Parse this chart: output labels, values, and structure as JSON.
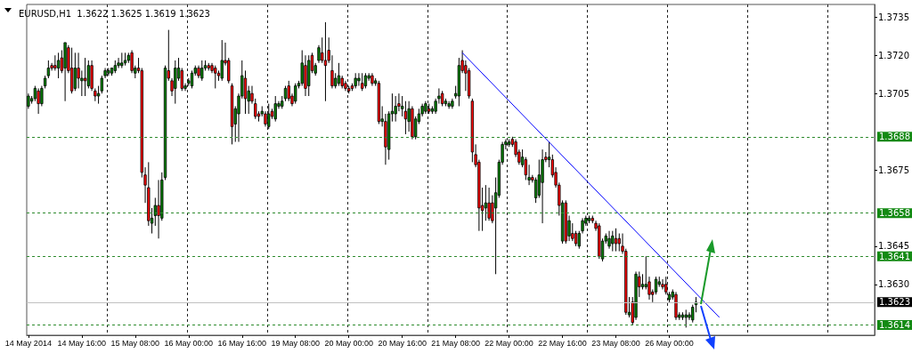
{
  "chart_data": {
    "type": "candlestick",
    "title": "EURUSD,H1  1.3622 1.3625 1.3619 1.3623",
    "categories": [
      "14 May 2014",
      null,
      null,
      null,
      null,
      null,
      null,
      null,
      null,
      null,
      null,
      null,
      null,
      null,
      null,
      null,
      "14 May 16:00",
      null,
      null,
      null,
      null,
      null,
      null,
      null,
      null,
      null,
      null,
      null,
      null,
      null,
      null,
      null,
      "15 May 08:00",
      null,
      null,
      null,
      null,
      null,
      null,
      null,
      null,
      null,
      null,
      null,
      null,
      null,
      null,
      null,
      "16 May 00:00",
      null,
      null,
      null,
      null,
      null,
      null,
      null,
      null,
      null,
      null,
      null,
      null,
      null,
      null,
      null,
      "16 May 16:00",
      null,
      null,
      null,
      null,
      null,
      null,
      null,
      null,
      null,
      null,
      null,
      null,
      null,
      null,
      null,
      "19 May 08:00",
      null,
      null,
      null,
      null,
      null,
      null,
      null,
      null,
      null,
      null,
      null,
      null,
      null,
      null,
      null,
      "20 May 00:00",
      null,
      null,
      null,
      null,
      null,
      null,
      null,
      null,
      null,
      null,
      null,
      null,
      null,
      null,
      null,
      "20 May 16:00",
      null,
      null,
      null,
      null,
      null,
      null,
      null,
      null,
      null,
      null,
      null,
      null,
      null,
      null,
      null,
      "21 May 08:00",
      null,
      null,
      null,
      null,
      null,
      null,
      null,
      null,
      null,
      null,
      null,
      null,
      null,
      null,
      null,
      "22 May 00:00",
      null,
      null,
      null,
      null,
      null,
      null,
      null,
      null,
      null,
      null,
      null,
      null,
      null,
      null,
      null,
      "22 May 16:00",
      null,
      null,
      null,
      null,
      null,
      null,
      null,
      null,
      null,
      null,
      null,
      null,
      null,
      null,
      null,
      "23 May 08:00",
      null,
      null,
      null,
      null,
      null,
      null,
      null,
      null,
      null,
      null,
      null,
      null,
      null,
      null,
      null,
      "26 May 00:00",
      null,
      null,
      null,
      null,
      null,
      null,
      null,
      null,
      null,
      null,
      null,
      null,
      null,
      null,
      null,
      null,
      null,
      null,
      null,
      null,
      null,
      null,
      null,
      null,
      null,
      null,
      null,
      null,
      null,
      null,
      null,
      null,
      null,
      null,
      null,
      null,
      null,
      null,
      null,
      null,
      null,
      null,
      null,
      null,
      null,
      null,
      null,
      null,
      null,
      null,
      null,
      null,
      null,
      null,
      null,
      null,
      null,
      null,
      null,
      null,
      null
    ],
    "ohlc": [
      [
        1.37,
        1.3705,
        1.3699,
        1.3704
      ],
      [
        1.3702,
        1.3704,
        1.3701,
        1.3703
      ],
      [
        1.3703,
        1.3708,
        1.3702,
        1.3707
      ],
      [
        1.3706,
        1.3707,
        1.3697,
        1.3701
      ],
      [
        1.3701,
        1.3708,
        1.37,
        1.3707
      ],
      [
        1.3708,
        1.3712,
        1.3707,
        1.3711
      ],
      [
        1.3712,
        1.3718,
        1.3711,
        1.3715
      ],
      [
        1.3716,
        1.3717,
        1.3714,
        1.3715
      ],
      [
        1.3716,
        1.372,
        1.3714,
        1.3715
      ],
      [
        1.3715,
        1.3721,
        1.3711,
        1.3718
      ],
      [
        1.3719,
        1.3722,
        1.3713,
        1.3714
      ],
      [
        1.3715,
        1.3725,
        1.3702,
        1.3725
      ],
      [
        1.3723,
        1.3724,
        1.3713,
        1.3714
      ],
      [
        1.3715,
        1.3723,
        1.3705,
        1.3706
      ],
      [
        1.3707,
        1.3721,
        1.3706,
        1.3715
      ],
      [
        1.3715,
        1.3721,
        1.3707,
        1.3711
      ],
      [
        1.371,
        1.3714,
        1.3704,
        1.3711
      ],
      [
        1.3711,
        1.3719,
        1.3704,
        1.371
      ],
      [
        1.3708,
        1.3718,
        1.3707,
        1.3716
      ],
      [
        1.3716,
        1.3718,
        1.3706,
        1.3707
      ],
      [
        1.3706,
        1.3707,
        1.3702,
        1.3704
      ],
      [
        1.3704,
        1.3708,
        1.3701,
        1.3705
      ],
      [
        1.3706,
        1.3712,
        1.3705,
        1.3711
      ],
      [
        1.3712,
        1.3715,
        1.3711,
        1.3714
      ],
      [
        1.3713,
        1.3715,
        1.3712,
        1.3714
      ],
      [
        1.3713,
        1.3715,
        1.3712,
        1.3715
      ],
      [
        1.3714,
        1.3718,
        1.3713,
        1.3716
      ],
      [
        1.3716,
        1.3719,
        1.3715,
        1.3717
      ],
      [
        1.3716,
        1.3721,
        1.3715,
        1.3717
      ],
      [
        1.3717,
        1.3721,
        1.3716,
        1.3718
      ],
      [
        1.3718,
        1.3721,
        1.3717,
        1.372
      ],
      [
        1.3721,
        1.3722,
        1.3713,
        1.3714
      ],
      [
        1.3713,
        1.3716,
        1.3711,
        1.3715
      ],
      [
        1.3715,
        1.3719,
        1.3713,
        1.3714
      ],
      [
        1.3714,
        1.3715,
        1.3672,
        1.3674
      ],
      [
        1.3673,
        1.3676,
        1.3662,
        1.3669
      ],
      [
        1.3668,
        1.3678,
        1.3653,
        1.3655
      ],
      [
        1.3654,
        1.366,
        1.365,
        1.3656
      ],
      [
        1.3657,
        1.3664,
        1.3653,
        1.3661
      ],
      [
        1.3661,
        1.3671,
        1.3648,
        1.3657
      ],
      [
        1.3656,
        1.3674,
        1.3655,
        1.3671
      ],
      [
        1.3672,
        1.3716,
        1.3671,
        1.3715
      ],
      [
        1.3714,
        1.373,
        1.371,
        1.3711
      ],
      [
        1.371,
        1.3711,
        1.3704,
        1.3706
      ],
      [
        1.3707,
        1.3718,
        1.3701,
        1.3715
      ],
      [
        1.3711,
        1.3719,
        1.371,
        1.3715
      ],
      [
        1.3714,
        1.3715,
        1.3706,
        1.3707
      ],
      [
        1.3707,
        1.3709,
        1.3706,
        1.3708
      ],
      [
        1.3709,
        1.3711,
        1.3708,
        1.371
      ],
      [
        1.3708,
        1.3714,
        1.3707,
        1.3713
      ],
      [
        1.3713,
        1.3716,
        1.3712,
        1.3715
      ],
      [
        1.3715,
        1.3716,
        1.3711,
        1.3712
      ],
      [
        1.3711,
        1.3718,
        1.371,
        1.3715
      ],
      [
        1.3715,
        1.3718,
        1.3714,
        1.3716
      ],
      [
        1.3716,
        1.3717,
        1.3714,
        1.3715
      ],
      [
        1.3716,
        1.3717,
        1.3713,
        1.3714
      ],
      [
        1.3715,
        1.3716,
        1.3707,
        1.3713
      ],
      [
        1.3713,
        1.3714,
        1.371,
        1.3712
      ],
      [
        1.3711,
        1.3726,
        1.371,
        1.3718
      ],
      [
        1.3718,
        1.3725,
        1.3716,
        1.3717
      ],
      [
        1.3718,
        1.3719,
        1.3709,
        1.371
      ],
      [
        1.3708,
        1.3709,
        1.3685,
        1.3692
      ],
      [
        1.3693,
        1.37,
        1.3686,
        1.3699
      ],
      [
        1.3697,
        1.3705,
        1.3686,
        1.3704
      ],
      [
        1.3704,
        1.3718,
        1.3703,
        1.3712
      ],
      [
        1.3711,
        1.3714,
        1.3697,
        1.3703
      ],
      [
        1.3702,
        1.3708,
        1.3697,
        1.3706
      ],
      [
        1.3705,
        1.3708,
        1.3701,
        1.3702
      ],
      [
        1.3701,
        1.3703,
        1.3695,
        1.3696
      ],
      [
        1.3697,
        1.3698,
        1.3694,
        1.3696
      ],
      [
        1.3697,
        1.37,
        1.3696,
        1.3698
      ],
      [
        1.3697,
        1.3698,
        1.3692,
        1.3693
      ],
      [
        1.3692,
        1.3701,
        1.3691,
        1.3697
      ],
      [
        1.3698,
        1.3699,
        1.3695,
        1.3696
      ],
      [
        1.3695,
        1.3704,
        1.3694,
        1.3701
      ],
      [
        1.37,
        1.3702,
        1.3699,
        1.3701
      ],
      [
        1.37,
        1.3704,
        1.3699,
        1.3702
      ],
      [
        1.3703,
        1.3708,
        1.3702,
        1.3707
      ],
      [
        1.3708,
        1.371,
        1.3702,
        1.3703
      ],
      [
        1.3704,
        1.3705,
        1.37,
        1.3701
      ],
      [
        1.3702,
        1.3709,
        1.3701,
        1.3708
      ],
      [
        1.3708,
        1.371,
        1.3707,
        1.3709
      ],
      [
        1.3709,
        1.3722,
        1.3708,
        1.3717
      ],
      [
        1.3716,
        1.372,
        1.3704,
        1.3707
      ],
      [
        1.3708,
        1.372,
        1.3704,
        1.3718
      ],
      [
        1.372,
        1.3721,
        1.3713,
        1.3714
      ],
      [
        1.3713,
        1.3717,
        1.3712,
        1.3716
      ],
      [
        1.3718,
        1.3724,
        1.3717,
        1.3723
      ],
      [
        1.3721,
        1.3727,
        1.3717,
        1.3718
      ],
      [
        1.3718,
        1.3733,
        1.3702,
        1.3716
      ],
      [
        1.3722,
        1.3727,
        1.3717,
        1.3718
      ],
      [
        1.3714,
        1.372,
        1.3707,
        1.3708
      ],
      [
        1.3708,
        1.3713,
        1.3707,
        1.3711
      ],
      [
        1.3709,
        1.3717,
        1.3708,
        1.3712
      ],
      [
        1.3711,
        1.3712,
        1.3707,
        1.3708
      ],
      [
        1.3709,
        1.371,
        1.3706,
        1.3707
      ],
      [
        1.3707,
        1.3708,
        1.3705,
        1.3706
      ],
      [
        1.3708,
        1.3709,
        1.3706,
        1.3707
      ],
      [
        1.3708,
        1.3713,
        1.3707,
        1.3711
      ],
      [
        1.371,
        1.3713,
        1.3708,
        1.3711
      ],
      [
        1.3709,
        1.3713,
        1.3706,
        1.3707
      ],
      [
        1.3708,
        1.3713,
        1.3707,
        1.3712
      ],
      [
        1.3711,
        1.3713,
        1.371,
        1.3712
      ],
      [
        1.3712,
        1.3713,
        1.3708,
        1.3709
      ],
      [
        1.3709,
        1.3711,
        1.3708,
        1.371
      ],
      [
        1.3709,
        1.371,
        1.3693,
        1.3694
      ],
      [
        1.3694,
        1.37,
        1.3692,
        1.3695
      ],
      [
        1.3694,
        1.3697,
        1.3677,
        1.3684
      ],
      [
        1.3683,
        1.3698,
        1.3679,
        1.3697
      ],
      [
        1.3697,
        1.3705,
        1.3694,
        1.3698
      ],
      [
        1.3697,
        1.3704,
        1.3694,
        1.37
      ],
      [
        1.3701,
        1.3705,
        1.3698,
        1.37
      ],
      [
        1.3699,
        1.3704,
        1.3696,
        1.37
      ],
      [
        1.3698,
        1.3702,
        1.3689,
        1.3695
      ],
      [
        1.3694,
        1.3702,
        1.369,
        1.3699
      ],
      [
        1.3699,
        1.37,
        1.3687,
        1.3688
      ],
      [
        1.3688,
        1.3696,
        1.3687,
        1.3695
      ],
      [
        1.3694,
        1.3699,
        1.3693,
        1.3697
      ],
      [
        1.3697,
        1.3701,
        1.3696,
        1.37
      ],
      [
        1.3698,
        1.3702,
        1.3697,
        1.3701
      ],
      [
        1.3699,
        1.3701,
        1.3697,
        1.3698
      ],
      [
        1.3698,
        1.37,
        1.3697,
        1.3699
      ],
      [
        1.3698,
        1.3703,
        1.3697,
        1.3702
      ],
      [
        1.3703,
        1.3707,
        1.3701,
        1.3704
      ],
      [
        1.3705,
        1.3706,
        1.37,
        1.3701
      ],
      [
        1.3701,
        1.3703,
        1.37,
        1.3702
      ],
      [
        1.37,
        1.3702,
        1.3699,
        1.3701
      ],
      [
        1.37,
        1.3703,
        1.3699,
        1.3702
      ],
      [
        1.3704,
        1.3708,
        1.3703,
        1.3705
      ],
      [
        1.3704,
        1.3719,
        1.37,
        1.3716
      ],
      [
        1.3718,
        1.3722,
        1.3713,
        1.3714
      ],
      [
        1.3716,
        1.3718,
        1.3706,
        1.3713
      ],
      [
        1.3714,
        1.3715,
        1.3703,
        1.3704
      ],
      [
        1.3702,
        1.3703,
        1.3678,
        1.3682
      ],
      [
        1.3681,
        1.3685,
        1.3676,
        1.3677
      ],
      [
        1.3678,
        1.3679,
        1.3651,
        1.366
      ],
      [
        1.3661,
        1.3668,
        1.3651,
        1.3659
      ],
      [
        1.366,
        1.3669,
        1.3655,
        1.3662
      ],
      [
        1.3662,
        1.3668,
        1.3655,
        1.3656
      ],
      [
        1.3662,
        1.3665,
        1.3654,
        1.3655
      ],
      [
        1.366,
        1.3672,
        1.3634,
        1.3666
      ],
      [
        1.3665,
        1.3679,
        1.3664,
        1.3678
      ],
      [
        1.3678,
        1.3686,
        1.3677,
        1.3685
      ],
      [
        1.3685,
        1.3687,
        1.3683,
        1.3686
      ],
      [
        1.3685,
        1.3687,
        1.3684,
        1.3686
      ],
      [
        1.3687,
        1.3688,
        1.3684,
        1.3685
      ],
      [
        1.3686,
        1.3687,
        1.368,
        1.3681
      ],
      [
        1.3682,
        1.3683,
        1.3677,
        1.3678
      ],
      [
        1.3677,
        1.3683,
        1.3676,
        1.368
      ],
      [
        1.3679,
        1.368,
        1.3671,
        1.3673
      ],
      [
        1.3671,
        1.3677,
        1.3669,
        1.3672
      ],
      [
        1.3672,
        1.3673,
        1.367,
        1.3671
      ],
      [
        1.3664,
        1.3672,
        1.3662,
        1.3671
      ],
      [
        1.3665,
        1.3679,
        1.3664,
        1.3673
      ],
      [
        1.367,
        1.3683,
        1.3654,
        1.3679
      ],
      [
        1.368,
        1.3682,
        1.3678,
        1.3679
      ],
      [
        1.3679,
        1.3686,
        1.3676,
        1.368
      ],
      [
        1.3679,
        1.3681,
        1.3672,
        1.3673
      ],
      [
        1.3674,
        1.3676,
        1.3668,
        1.3669
      ],
      [
        1.3669,
        1.367,
        1.3657,
        1.3661
      ],
      [
        1.3647,
        1.3663,
        1.3646,
        1.3662
      ],
      [
        1.3662,
        1.3663,
        1.3646,
        1.3647
      ],
      [
        1.3649,
        1.3657,
        1.3647,
        1.3655
      ],
      [
        1.365,
        1.3654,
        1.3647,
        1.3648
      ],
      [
        1.365,
        1.3651,
        1.3645,
        1.3646
      ],
      [
        1.3645,
        1.3651,
        1.3644,
        1.365
      ],
      [
        1.3651,
        1.3656,
        1.365,
        1.3655
      ],
      [
        1.3654,
        1.3657,
        1.3653,
        1.3656
      ],
      [
        1.3655,
        1.3657,
        1.3654,
        1.3656
      ],
      [
        1.3656,
        1.3657,
        1.3654,
        1.3655
      ],
      [
        1.3654,
        1.3655,
        1.3651,
        1.3652
      ],
      [
        1.3653,
        1.3654,
        1.364,
        1.3641
      ],
      [
        1.364,
        1.3648,
        1.3639,
        1.3647
      ],
      [
        1.3647,
        1.365,
        1.3646,
        1.3649
      ],
      [
        1.3645,
        1.3651,
        1.3644,
        1.3648
      ],
      [
        1.3646,
        1.3651,
        1.3643,
        1.3649
      ],
      [
        1.3648,
        1.3652,
        1.3643,
        1.3646
      ],
      [
        1.3648,
        1.365,
        1.3643,
        1.3646
      ],
      [
        1.3645,
        1.365,
        1.3642,
        1.3643
      ],
      [
        1.3643,
        1.3644,
        1.3618,
        1.3619
      ],
      [
        1.3618,
        1.3625,
        1.3617,
        1.3619
      ],
      [
        1.3623,
        1.3625,
        1.3614,
        1.3615
      ],
      [
        1.3617,
        1.3635,
        1.3616,
        1.3634
      ],
      [
        1.3633,
        1.3635,
        1.3625,
        1.3629
      ],
      [
        1.3629,
        1.3634,
        1.3628,
        1.363
      ],
      [
        1.3629,
        1.3641,
        1.3628,
        1.363
      ],
      [
        1.3631,
        1.3633,
        1.3624,
        1.3626
      ],
      [
        1.3627,
        1.3628,
        1.3623,
        1.3626
      ],
      [
        1.3627,
        1.3633,
        1.3626,
        1.3632
      ],
      [
        1.363,
        1.3633,
        1.3629,
        1.3631
      ],
      [
        1.363,
        1.3632,
        1.3628,
        1.3629
      ],
      [
        1.363,
        1.3633,
        1.3626,
        1.3627
      ],
      [
        1.3624,
        1.3627,
        1.3623,
        1.3626
      ],
      [
        1.3625,
        1.3628,
        1.3624,
        1.3627
      ],
      [
        1.3626,
        1.3627,
        1.3616,
        1.3617
      ],
      [
        1.3617,
        1.3619,
        1.3616,
        1.3618
      ],
      [
        1.3617,
        1.3619,
        1.3616,
        1.3618
      ],
      [
        1.3617,
        1.362,
        1.3613,
        1.3618
      ],
      [
        1.3617,
        1.3619,
        1.3616,
        1.3618
      ],
      [
        1.3616,
        1.3622,
        1.3615,
        1.3621
      ],
      [
        1.3622,
        1.3625,
        1.3619,
        1.3623
      ],
      null,
      null,
      null,
      null,
      null,
      null,
      null,
      null,
      null,
      null,
      null,
      null,
      null,
      null,
      null,
      null,
      null,
      null,
      null,
      null,
      null,
      null,
      null,
      null,
      null,
      null,
      null,
      null,
      null,
      null,
      null,
      null,
      null,
      null,
      null,
      null,
      null,
      null,
      null,
      null,
      null,
      null,
      null,
      null,
      null,
      null,
      null,
      null,
      null,
      null,
      null,
      null,
      null
    ],
    "series": [
      {
        "type": "line",
        "color": "#0000ff",
        "values": [
          null,
          null,
          null,
          null,
          null,
          null,
          null,
          null,
          null,
          null,
          null,
          null,
          null,
          null,
          null,
          null,
          null,
          null,
          null,
          null,
          null,
          null,
          null,
          null,
          null,
          null,
          null,
          null,
          null,
          null,
          null,
          null,
          null,
          null,
          null,
          null,
          null,
          null,
          null,
          null,
          null,
          null,
          null,
          null,
          null,
          null,
          null,
          null,
          null,
          null,
          null,
          null,
          null,
          null,
          null,
          null,
          null,
          null,
          null,
          null,
          null,
          null,
          null,
          null,
          null,
          null,
          null,
          null,
          null,
          null,
          null,
          null,
          null,
          null,
          null,
          null,
          null,
          null,
          null,
          null,
          null,
          null,
          null,
          null,
          null,
          null,
          null,
          null,
          null,
          null,
          null,
          null,
          null,
          null,
          null,
          null,
          null,
          null,
          null,
          null,
          null,
          null,
          null,
          null,
          null,
          null,
          null,
          null,
          null,
          null,
          null,
          null,
          null,
          null,
          null,
          null,
          null,
          null,
          null,
          null,
          null,
          null,
          null,
          null,
          null,
          null,
          null,
          null,
          null,
          null,
          1.3721,
          null,
          null,
          null,
          null,
          null,
          null,
          null,
          null,
          null,
          null,
          null,
          null,
          null,
          null,
          null,
          null,
          null,
          null,
          null,
          null,
          null,
          null,
          null,
          null,
          null,
          null,
          null,
          null,
          null,
          null,
          null,
          null,
          null,
          null,
          null,
          null,
          null,
          null,
          null,
          null,
          null,
          null,
          null,
          null,
          null,
          null,
          null,
          null,
          null,
          null,
          null,
          null,
          null,
          null,
          null,
          null,
          null,
          null,
          null,
          null,
          null,
          null,
          null,
          null,
          null,
          null,
          null,
          null,
          null,
          null,
          null,
          null,
          null,
          null,
          null,
          null,
          1.3617,
          null,
          null,
          null,
          null,
          null,
          null,
          null,
          null,
          null,
          null,
          null,
          null,
          null,
          null,
          null,
          null,
          null,
          null,
          null,
          null,
          null,
          null,
          null,
          null,
          null,
          null,
          null,
          null,
          null,
          null,
          null,
          null,
          null,
          null,
          null,
          null,
          null,
          null,
          null,
          null,
          null,
          null,
          null,
          null,
          null,
          null
        ]
      }
    ],
    "ylim": [
      1.361,
      1.374
    ],
    "yticks": [
      1.3735,
      {
        "value": 1.372,
        "label": "1.3720"
      },
      1.3705,
      1.3675,
      1.3645,
      {
        "value": 1.363,
        "label": "1.3630"
      }
    ],
    "ref_lines": [
      {
        "axis": "y",
        "value": 1.3688,
        "label": "1.3688",
        "color": "#2e8b2e",
        "line_style": "dashed"
      },
      {
        "axis": "y",
        "value": 1.3658,
        "label": "1.3658",
        "color": "#2e8b2e",
        "line_style": "dashed"
      },
      {
        "axis": "y",
        "value": 1.3641,
        "label": "1.3641",
        "color": "#2e8b2e",
        "line_style": "dashed"
      },
      {
        "axis": "y",
        "value": 1.3614,
        "label": "1.3614",
        "color": "#2e8b2e",
        "line_style": "dashed"
      },
      {
        "axis": "y",
        "value": 1.3623,
        "label": "1.3623",
        "color": "#c0c0c0",
        "line_style": "solid"
      }
    ],
    "grid": "x"
  }
}
